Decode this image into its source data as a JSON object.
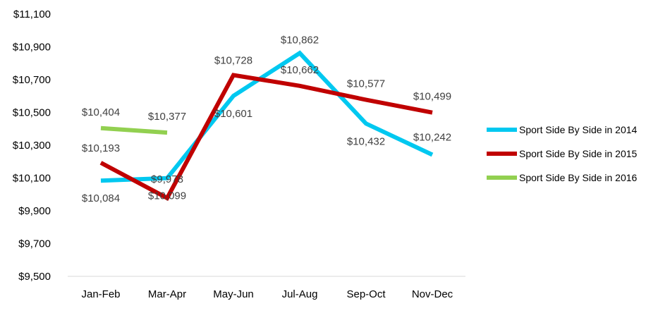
{
  "chart_data": {
    "type": "line",
    "categories": [
      "Jan-Feb",
      "Mar-Apr",
      "May-Jun",
      "Jul-Aug",
      "Sep-Oct",
      "Nov-Dec"
    ],
    "ylim": [
      9500,
      11100
    ],
    "yticks": [
      9500,
      9700,
      9900,
      10100,
      10300,
      10500,
      10700,
      10900,
      11100
    ],
    "ytick_labels": [
      "$9,500",
      "$9,700",
      "$9,900",
      "$10,100",
      "$10,300",
      "$10,500",
      "$10,700",
      "$10,900",
      "$11,100"
    ],
    "grid": false,
    "legend_position": "right",
    "series": [
      {
        "name": "Sport Side By Side in 2014",
        "color": "#00C8F0",
        "values": [
          10084,
          10099,
          10601,
          10862,
          10432,
          10242
        ],
        "labels": [
          "$10,084",
          "$10,099",
          "$10,601",
          "$10,862",
          "$10,432",
          "$10,242"
        ]
      },
      {
        "name": "Sport Side By Side in 2015",
        "color": "#C00000",
        "values": [
          10193,
          9978,
          10728,
          10662,
          10577,
          10499
        ],
        "labels": [
          "$10,193",
          "$9,978",
          "$10,728",
          "$10,662",
          "$10,577",
          "$10,499"
        ]
      },
      {
        "name": "Sport Side By Side in 2016",
        "color": "#92D050",
        "values": [
          10404,
          10377,
          null,
          null,
          null,
          null
        ],
        "labels": [
          "$10,404",
          "$10,377",
          null,
          null,
          null,
          null
        ]
      }
    ]
  }
}
